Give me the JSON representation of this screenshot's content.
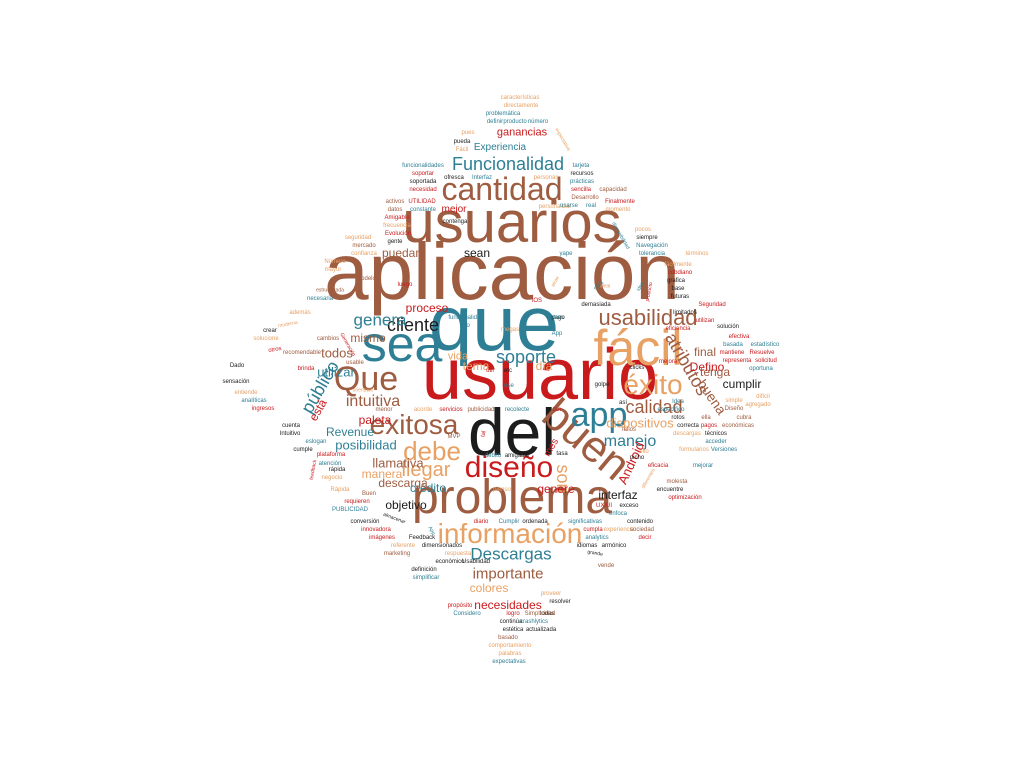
{
  "palette": {
    "brown": "#9e5c40",
    "teal": "#2e7f95",
    "tan": "#e8a164",
    "black": "#1c1c1c",
    "red": "#c91a1c",
    "background": "#ffffff"
  },
  "words": [
    "aplicación",
    "usuario",
    "que",
    "del",
    "usuarios",
    "sea",
    "fácil",
    "problema",
    "buen",
    "diseño",
    "cantidad",
    "app",
    "información",
    "exitosa",
    "Que",
    "éxito",
    "debe",
    "Funcionalidad",
    "usabilidad",
    "soporte",
    "Descargas",
    "son",
    "cliente",
    "calidad",
    "atributos",
    "genera",
    "llegar",
    "importante",
    "intuitiva",
    "manejo",
    "público",
    "dispositivos",
    "buena",
    "Android",
    "llamativa",
    "posibilidad",
    "utilizar",
    "necesidades",
    "sean",
    "mismo",
    "puedan",
    "todos",
    "crédito",
    "final",
    "Defino",
    "paleta",
    "Revenue",
    "descarga",
    "tenga",
    "proceso",
    "colores",
    "manera",
    "genere",
    "interfaz",
    "cumplir",
    "tema",
    "día",
    "vida",
    "objetivo",
    "está",
    "ganancias",
    "Experiencia",
    "mejor",
    "mes",
    "características",
    "directamente",
    "definir",
    "producto",
    "número",
    "problemática",
    "expectativa",
    "pues",
    "Fácil",
    "pueda",
    "funcionalidades",
    "ofresca",
    "Interfaz",
    "personas",
    "tarjeta",
    "soportar",
    "recursos",
    "soportada",
    "necesidad",
    "prácticas",
    "sencilla",
    "capacidad",
    "activos",
    "UTILIDAD",
    "personalizar",
    "Desarrollo",
    "Finalmente",
    "datos",
    "constante",
    "contenga",
    "momento",
    "Amigable",
    "frecuencia",
    "Evolución",
    "seguridad",
    "gente",
    "mercado",
    "confianza",
    "siempre",
    "pocos",
    "disponibilidad",
    "Navegación",
    "tolerancia",
    "términos",
    "Número",
    "mayor",
    "yape",
    "fácilmente",
    "cobdiano",
    "grafica",
    "base",
    "futuras",
    "limitados",
    "demasiada",
    "iOS",
    "luego",
    "atrae",
    "ideal",
    "idea",
    "Seguridad",
    "utilizan",
    "solución",
    "eficiencia",
    "efectiva",
    "basada",
    "estadístico",
    "mantiene",
    "Resuelve",
    "representa",
    "solicitud",
    "mejora",
    "oportuna",
    "Dado",
    "sensación",
    "entiende",
    "analíticas",
    "ingresos",
    "clicks",
    "golpe",
    "difícil",
    "agregado",
    "simple",
    "Diseño",
    "cubra",
    "económicas",
    "técnicos",
    "acceder",
    "formularios",
    "Versiones",
    "mejorar",
    "crear",
    "moderna",
    "solucione",
    "otros",
    "recomendable",
    "cambios",
    "Generación",
    "necesaria",
    "estructurada",
    "además",
    "brinda",
    "modelo",
    "orientado",
    "usable",
    "cuenta",
    "Intuitivo",
    "cumple",
    "eslogan",
    "atención",
    "rápida",
    "negocio",
    "Rápida",
    "plataforma",
    "feedback",
    "requieren",
    "innovadora",
    "imágenes",
    "referente",
    "marketing",
    "simplificar",
    "respuesta",
    "definición",
    "Feedback",
    "conversión",
    "almacenar",
    "PUBLICIDAD",
    "dimensionados",
    "económico",
    "Usabilidad",
    "todas",
    "continúa",
    "crashlytics",
    "estética",
    "actualizada",
    "basado",
    "comportamiento",
    "palabras",
    "expectativas",
    "Considero",
    "propósito",
    "logro",
    "Simplicidad",
    "resolver",
    "vende",
    "proveer",
    "experiencia",
    "sociedad",
    "decir",
    "cumpla",
    "UX/UI",
    "exceso",
    "enfoca",
    "optimización",
    "significativas",
    "contenido",
    "armónico",
    "idiomas",
    "analytics",
    "Cumplir",
    "ordenada",
    "diario",
    "MVP",
    "débito",
    "amigable",
    "tasa",
    "nicho",
    "eficacia",
    "molesta",
    "encuentre",
    "pienso",
    "Buen",
    "recolecte",
    "servicios",
    "publicidad",
    "acorde",
    "menor",
    "tan",
    "así",
    "fallos",
    "ella",
    "rotos",
    "correcta",
    "pagos",
    "descargas",
    "funcionalidad",
    "eso",
    "megas",
    "pago",
    "App",
    "etc",
    "útil",
    "use",
    "tal",
    "real",
    "usarse",
    "grande",
    "específico",
    "Idea",
    "clara",
    "ello",
    "otras",
    "App",
    "diferentes",
    "producto",
    "servicio"
  ]
}
